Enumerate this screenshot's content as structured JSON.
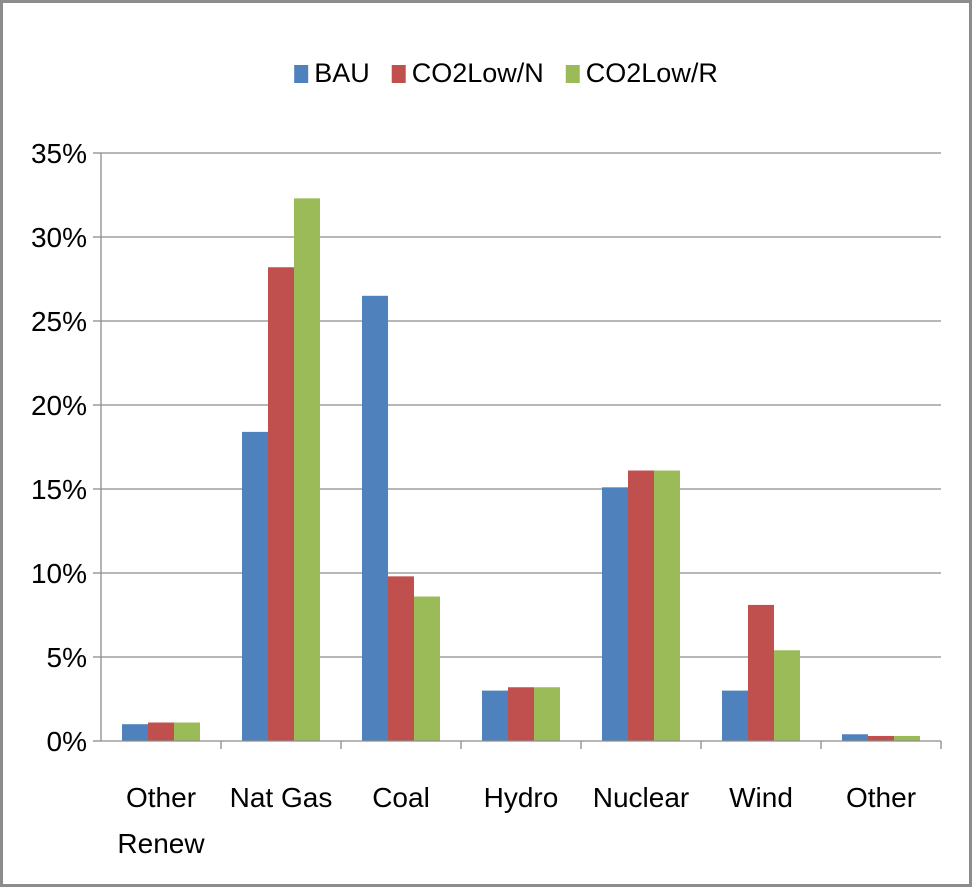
{
  "chart_data": {
    "type": "bar",
    "title": "",
    "xlabel": "",
    "ylabel": "",
    "categories": [
      [
        "Other",
        "Renew"
      ],
      [
        "Nat Gas"
      ],
      [
        "Coal"
      ],
      [
        "Hydro"
      ],
      [
        "Nuclear"
      ],
      [
        "Wind"
      ],
      [
        "Other"
      ]
    ],
    "series": [
      {
        "name": "BAU",
        "color": "#4f81bd",
        "values": [
          1.0,
          18.4,
          26.5,
          3.0,
          15.1,
          3.0,
          0.4
        ]
      },
      {
        "name": "CO2Low/N",
        "color": "#c0504d",
        "values": [
          1.1,
          28.2,
          9.8,
          3.2,
          16.1,
          8.1,
          0.3
        ]
      },
      {
        "name": "CO2Low/R",
        "color": "#9bbb59",
        "values": [
          1.1,
          32.3,
          8.6,
          3.2,
          16.1,
          5.4,
          0.3
        ]
      }
    ],
    "yticks": [
      "0%",
      "5%",
      "10%",
      "15%",
      "20%",
      "25%",
      "30%",
      "35%"
    ],
    "ylim": [
      0,
      35
    ],
    "grid": true,
    "legend_position": "top-center"
  }
}
